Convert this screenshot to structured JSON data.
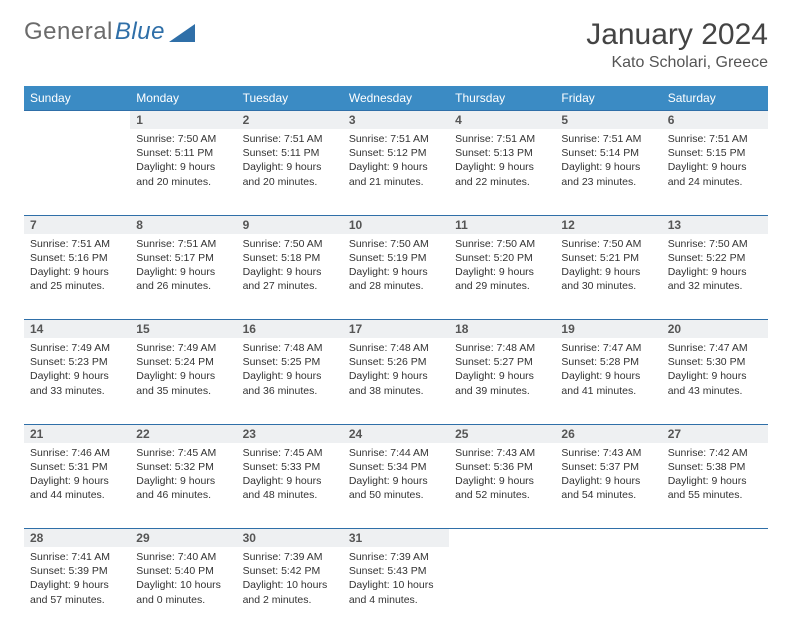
{
  "logo": {
    "word1": "General",
    "word2": "Blue"
  },
  "title": "January 2024",
  "location": "Kato Scholari, Greece",
  "colors": {
    "header_bg": "#3b8bc4",
    "header_text": "#ffffff",
    "row_divider": "#2f6fa8",
    "daynum_bg": "#eef0f2",
    "logo_gray": "#6b6b6b",
    "logo_blue": "#2f6fa8"
  },
  "weekdays": [
    "Sunday",
    "Monday",
    "Tuesday",
    "Wednesday",
    "Thursday",
    "Friday",
    "Saturday"
  ],
  "start_offset": 1,
  "days": [
    {
      "n": 1,
      "sr": "7:50 AM",
      "ss": "5:11 PM",
      "dl": "9 hours and 20 minutes."
    },
    {
      "n": 2,
      "sr": "7:51 AM",
      "ss": "5:11 PM",
      "dl": "9 hours and 20 minutes."
    },
    {
      "n": 3,
      "sr": "7:51 AM",
      "ss": "5:12 PM",
      "dl": "9 hours and 21 minutes."
    },
    {
      "n": 4,
      "sr": "7:51 AM",
      "ss": "5:13 PM",
      "dl": "9 hours and 22 minutes."
    },
    {
      "n": 5,
      "sr": "7:51 AM",
      "ss": "5:14 PM",
      "dl": "9 hours and 23 minutes."
    },
    {
      "n": 6,
      "sr": "7:51 AM",
      "ss": "5:15 PM",
      "dl": "9 hours and 24 minutes."
    },
    {
      "n": 7,
      "sr": "7:51 AM",
      "ss": "5:16 PM",
      "dl": "9 hours and 25 minutes."
    },
    {
      "n": 8,
      "sr": "7:51 AM",
      "ss": "5:17 PM",
      "dl": "9 hours and 26 minutes."
    },
    {
      "n": 9,
      "sr": "7:50 AM",
      "ss": "5:18 PM",
      "dl": "9 hours and 27 minutes."
    },
    {
      "n": 10,
      "sr": "7:50 AM",
      "ss": "5:19 PM",
      "dl": "9 hours and 28 minutes."
    },
    {
      "n": 11,
      "sr": "7:50 AM",
      "ss": "5:20 PM",
      "dl": "9 hours and 29 minutes."
    },
    {
      "n": 12,
      "sr": "7:50 AM",
      "ss": "5:21 PM",
      "dl": "9 hours and 30 minutes."
    },
    {
      "n": 13,
      "sr": "7:50 AM",
      "ss": "5:22 PM",
      "dl": "9 hours and 32 minutes."
    },
    {
      "n": 14,
      "sr": "7:49 AM",
      "ss": "5:23 PM",
      "dl": "9 hours and 33 minutes."
    },
    {
      "n": 15,
      "sr": "7:49 AM",
      "ss": "5:24 PM",
      "dl": "9 hours and 35 minutes."
    },
    {
      "n": 16,
      "sr": "7:48 AM",
      "ss": "5:25 PM",
      "dl": "9 hours and 36 minutes."
    },
    {
      "n": 17,
      "sr": "7:48 AM",
      "ss": "5:26 PM",
      "dl": "9 hours and 38 minutes."
    },
    {
      "n": 18,
      "sr": "7:48 AM",
      "ss": "5:27 PM",
      "dl": "9 hours and 39 minutes."
    },
    {
      "n": 19,
      "sr": "7:47 AM",
      "ss": "5:28 PM",
      "dl": "9 hours and 41 minutes."
    },
    {
      "n": 20,
      "sr": "7:47 AM",
      "ss": "5:30 PM",
      "dl": "9 hours and 43 minutes."
    },
    {
      "n": 21,
      "sr": "7:46 AM",
      "ss": "5:31 PM",
      "dl": "9 hours and 44 minutes."
    },
    {
      "n": 22,
      "sr": "7:45 AM",
      "ss": "5:32 PM",
      "dl": "9 hours and 46 minutes."
    },
    {
      "n": 23,
      "sr": "7:45 AM",
      "ss": "5:33 PM",
      "dl": "9 hours and 48 minutes."
    },
    {
      "n": 24,
      "sr": "7:44 AM",
      "ss": "5:34 PM",
      "dl": "9 hours and 50 minutes."
    },
    {
      "n": 25,
      "sr": "7:43 AM",
      "ss": "5:36 PM",
      "dl": "9 hours and 52 minutes."
    },
    {
      "n": 26,
      "sr": "7:43 AM",
      "ss": "5:37 PM",
      "dl": "9 hours and 54 minutes."
    },
    {
      "n": 27,
      "sr": "7:42 AM",
      "ss": "5:38 PM",
      "dl": "9 hours and 55 minutes."
    },
    {
      "n": 28,
      "sr": "7:41 AM",
      "ss": "5:39 PM",
      "dl": "9 hours and 57 minutes."
    },
    {
      "n": 29,
      "sr": "7:40 AM",
      "ss": "5:40 PM",
      "dl": "10 hours and 0 minutes."
    },
    {
      "n": 30,
      "sr": "7:39 AM",
      "ss": "5:42 PM",
      "dl": "10 hours and 2 minutes."
    },
    {
      "n": 31,
      "sr": "7:39 AM",
      "ss": "5:43 PM",
      "dl": "10 hours and 4 minutes."
    }
  ],
  "labels": {
    "sunrise": "Sunrise:",
    "sunset": "Sunset:",
    "daylight": "Daylight:"
  }
}
